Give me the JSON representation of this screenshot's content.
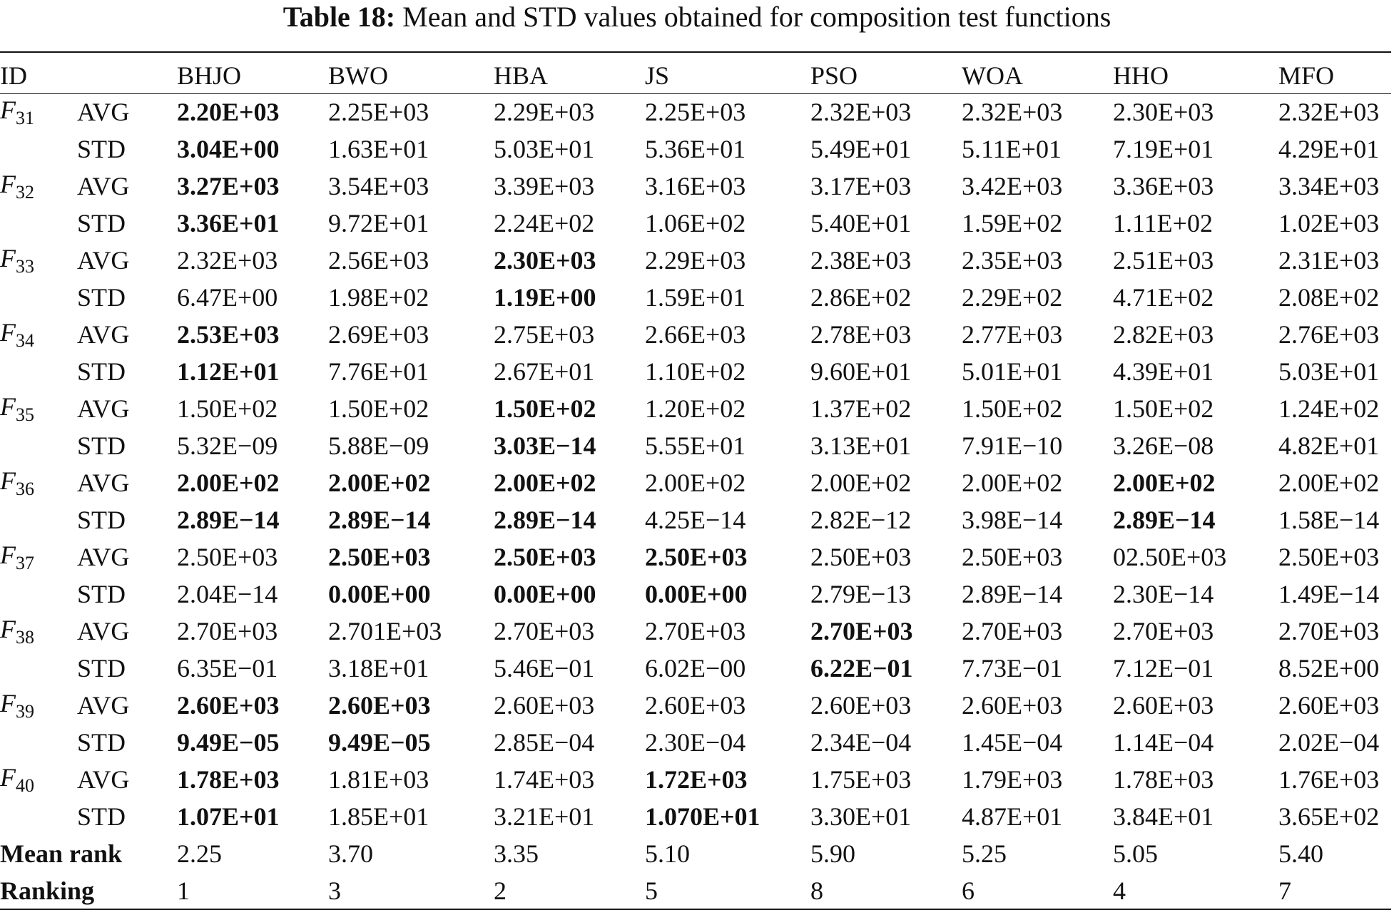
{
  "caption": {
    "label": "Table 18:",
    "text": "Mean and STD values obtained for composition test functions"
  },
  "headers": [
    "ID",
    "",
    "BHJO",
    "BWO",
    "HBA",
    "JS",
    "PSO",
    "WOA",
    "HHO",
    "MFO"
  ],
  "functions": [
    {
      "fn": "F",
      "sub": "31",
      "avg": {
        "stat": "AVG",
        "values": [
          "2.20E+03",
          "2.25E+03",
          "2.29E+03",
          "2.25E+03",
          "2.32E+03",
          "2.32E+03",
          "2.30E+03",
          "2.32E+03"
        ],
        "bold": [
          0
        ]
      },
      "std": {
        "stat": "STD",
        "values": [
          "3.04E+00",
          "1.63E+01",
          "5.03E+01",
          "5.36E+01",
          "5.49E+01",
          "5.11E+01",
          "7.19E+01",
          "4.29E+01"
        ],
        "bold": [
          0
        ]
      }
    },
    {
      "fn": "F",
      "sub": "32",
      "avg": {
        "stat": "AVG",
        "values": [
          "3.27E+03",
          "3.54E+03",
          "3.39E+03",
          "3.16E+03",
          "3.17E+03",
          "3.42E+03",
          "3.36E+03",
          "3.34E+03"
        ],
        "bold": [
          0
        ]
      },
      "std": {
        "stat": "STD",
        "values": [
          "3.36E+01",
          "9.72E+01",
          "2.24E+02",
          "1.06E+02",
          "5.40E+01",
          "1.59E+02",
          "1.11E+02",
          "1.02E+03"
        ],
        "bold": [
          0
        ]
      }
    },
    {
      "fn": "F",
      "sub": "33",
      "avg": {
        "stat": "AVG",
        "values": [
          "2.32E+03",
          "2.56E+03",
          "2.30E+03",
          "2.29E+03",
          "2.38E+03",
          "2.35E+03",
          "2.51E+03",
          "2.31E+03"
        ],
        "bold": [
          2
        ]
      },
      "std": {
        "stat": "STD",
        "values": [
          "6.47E+00",
          "1.98E+02",
          "1.19E+00",
          "1.59E+01",
          "2.86E+02",
          "2.29E+02",
          "4.71E+02",
          "2.08E+02"
        ],
        "bold": [
          2
        ]
      }
    },
    {
      "fn": "F",
      "sub": "34",
      "avg": {
        "stat": "AVG",
        "values": [
          "2.53E+03",
          "2.69E+03",
          "2.75E+03",
          "2.66E+03",
          "2.78E+03",
          "2.77E+03",
          "2.82E+03",
          "2.76E+03"
        ],
        "bold": [
          0
        ]
      },
      "std": {
        "stat": "STD",
        "values": [
          "1.12E+01",
          "7.76E+01",
          "2.67E+01",
          "1.10E+02",
          "9.60E+01",
          "5.01E+01",
          "4.39E+01",
          "5.03E+01"
        ],
        "bold": [
          0
        ]
      }
    },
    {
      "fn": "F",
      "sub": "35",
      "avg": {
        "stat": "AVG",
        "values": [
          "1.50E+02",
          "1.50E+02",
          "1.50E+02",
          "1.20E+02",
          "1.37E+02",
          "1.50E+02",
          "1.50E+02",
          "1.24E+02"
        ],
        "bold": [
          2
        ]
      },
      "std": {
        "stat": "STD",
        "values": [
          "5.32E−09",
          "5.88E−09",
          "3.03E−14",
          "5.55E+01",
          "3.13E+01",
          "7.91E−10",
          "3.26E−08",
          "4.82E+01"
        ],
        "bold": [
          2
        ]
      }
    },
    {
      "fn": "F",
      "sub": "36",
      "avg": {
        "stat": "AVG",
        "values": [
          "2.00E+02",
          "2.00E+02",
          "2.00E+02",
          "2.00E+02",
          "2.00E+02",
          "2.00E+02",
          "2.00E+02",
          "2.00E+02"
        ],
        "bold": [
          0,
          1,
          2,
          6
        ]
      },
      "std": {
        "stat": "STD",
        "values": [
          "2.89E−14",
          "2.89E−14",
          "2.89E−14",
          "4.25E−14",
          "2.82E−12",
          "3.98E−14",
          "2.89E−14",
          "1.58E−14"
        ],
        "bold": [
          0,
          1,
          2,
          6
        ]
      }
    },
    {
      "fn": "F",
      "sub": "37",
      "avg": {
        "stat": "AVG",
        "values": [
          "2.50E+03",
          "2.50E+03",
          "2.50E+03",
          "2.50E+03",
          "2.50E+03",
          "2.50E+03",
          "02.50E+03",
          "2.50E+03"
        ],
        "bold": [
          1,
          2,
          3
        ]
      },
      "std": {
        "stat": "STD",
        "values": [
          "2.04E−14",
          "0.00E+00",
          "0.00E+00",
          "0.00E+00",
          "2.79E−13",
          "2.89E−14",
          "2.30E−14",
          "1.49E−14"
        ],
        "bold": [
          1,
          2,
          3
        ]
      }
    },
    {
      "fn": "F",
      "sub": "38",
      "avg": {
        "stat": "AVG",
        "values": [
          "2.70E+03",
          "2.701E+03",
          "2.70E+03",
          "2.70E+03",
          "2.70E+03",
          "2.70E+03",
          "2.70E+03",
          "2.70E+03"
        ],
        "bold": [
          4
        ]
      },
      "std": {
        "stat": "STD",
        "values": [
          "6.35E−01",
          "3.18E+01",
          "5.46E−01",
          "6.02E−00",
          "6.22E−01",
          "7.73E−01",
          "7.12E−01",
          "8.52E+00"
        ],
        "bold": [
          4
        ]
      }
    },
    {
      "fn": "F",
      "sub": "39",
      "avg": {
        "stat": "AVG",
        "values": [
          "2.60E+03",
          "2.60E+03",
          "2.60E+03",
          "2.60E+03",
          "2.60E+03",
          "2.60E+03",
          "2.60E+03",
          "2.60E+03"
        ],
        "bold": [
          0,
          1
        ]
      },
      "std": {
        "stat": "STD",
        "values": [
          "9.49E−05",
          "9.49E−05",
          "2.85E−04",
          "2.30E−04",
          "2.34E−04",
          "1.45E−04",
          "1.14E−04",
          "2.02E−04"
        ],
        "bold": [
          0,
          1
        ]
      }
    },
    {
      "fn": "F",
      "sub": "40",
      "avg": {
        "stat": "AVG",
        "values": [
          "1.78E+03",
          "1.81E+03",
          "1.74E+03",
          "1.72E+03",
          "1.75E+03",
          "1.79E+03",
          "1.78E+03",
          "1.76E+03"
        ],
        "bold": [
          0,
          3
        ]
      },
      "std": {
        "stat": "STD",
        "values": [
          "1.07E+01",
          "1.85E+01",
          "3.21E+01",
          "1.070E+01",
          "3.30E+01",
          "4.87E+01",
          "3.84E+01",
          "3.65E+02"
        ],
        "bold": [
          0,
          3
        ]
      }
    }
  ],
  "summary": [
    {
      "label": "Mean rank",
      "values": [
        "2.25",
        "3.70",
        "3.35",
        "5.10",
        "5.90",
        "5.25",
        "5.05",
        "5.40"
      ]
    },
    {
      "label": "Ranking",
      "values": [
        "1",
        "3",
        "2",
        "5",
        "8",
        "6",
        "4",
        "7"
      ]
    }
  ]
}
